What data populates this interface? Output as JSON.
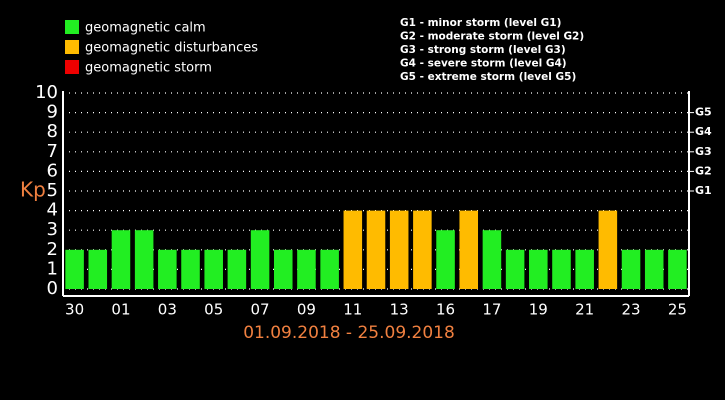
{
  "chart_data": {
    "type": "bar",
    "y_label": "Kp",
    "x_label": "01.09.2018 - 25.09.2018",
    "categories": [
      "30",
      null,
      "01",
      null,
      "03",
      null,
      "05",
      null,
      "07",
      null,
      "09",
      null,
      "11",
      null,
      "13",
      null,
      "16",
      null,
      "17",
      null,
      "19",
      null,
      "21",
      null,
      "23",
      null,
      "25"
    ],
    "values": [
      2,
      2,
      3,
      3,
      2,
      2,
      2,
      2,
      3,
      2,
      2,
      2,
      4,
      4,
      4,
      4,
      3,
      4,
      3,
      2,
      2,
      2,
      2,
      4,
      2,
      2,
      2
    ],
    "colors": [
      "#22ee22",
      "#22ee22",
      "#22ee22",
      "#22ee22",
      "#22ee22",
      "#22ee22",
      "#22ee22",
      "#22ee22",
      "#22ee22",
      "#22ee22",
      "#22ee22",
      "#22ee22",
      "#ffbb00",
      "#ffbb00",
      "#ffbb00",
      "#ffbb00",
      "#22ee22",
      "#ffbb00",
      "#22ee22",
      "#22ee22",
      "#22ee22",
      "#22ee22",
      "#22ee22",
      "#ffbb00",
      "#22ee22",
      "#22ee22",
      "#22ee22"
    ],
    "legend": [
      {
        "name": "geomagnetic calm",
        "color": "#22ee22"
      },
      {
        "name": "geomagnetic disturbances",
        "color": "#ffbb00"
      },
      {
        "name": "geomagnetic storm",
        "color": "#ee0000"
      }
    ],
    "storm_levels": [
      "G1 - minor storm (level G1)",
      "G2 - moderate storm (level G2)",
      "G3 - strong storm (level G3)",
      "G4 - severe storm (level G4)",
      "G5 - extreme storm (level G5)"
    ],
    "ylim": [
      0,
      10
    ],
    "yticks": [
      0,
      1,
      2,
      3,
      4,
      5,
      6,
      7,
      8,
      9,
      10
    ],
    "y2lim": [
      0,
      10
    ],
    "y2ticks": [
      {
        "value": 5,
        "label": "G1"
      },
      {
        "value": 6,
        "label": "G2"
      },
      {
        "value": 7,
        "label": "G3"
      },
      {
        "value": 8,
        "label": "G4"
      },
      {
        "value": 9,
        "label": "G5"
      }
    ],
    "grid": true
  }
}
